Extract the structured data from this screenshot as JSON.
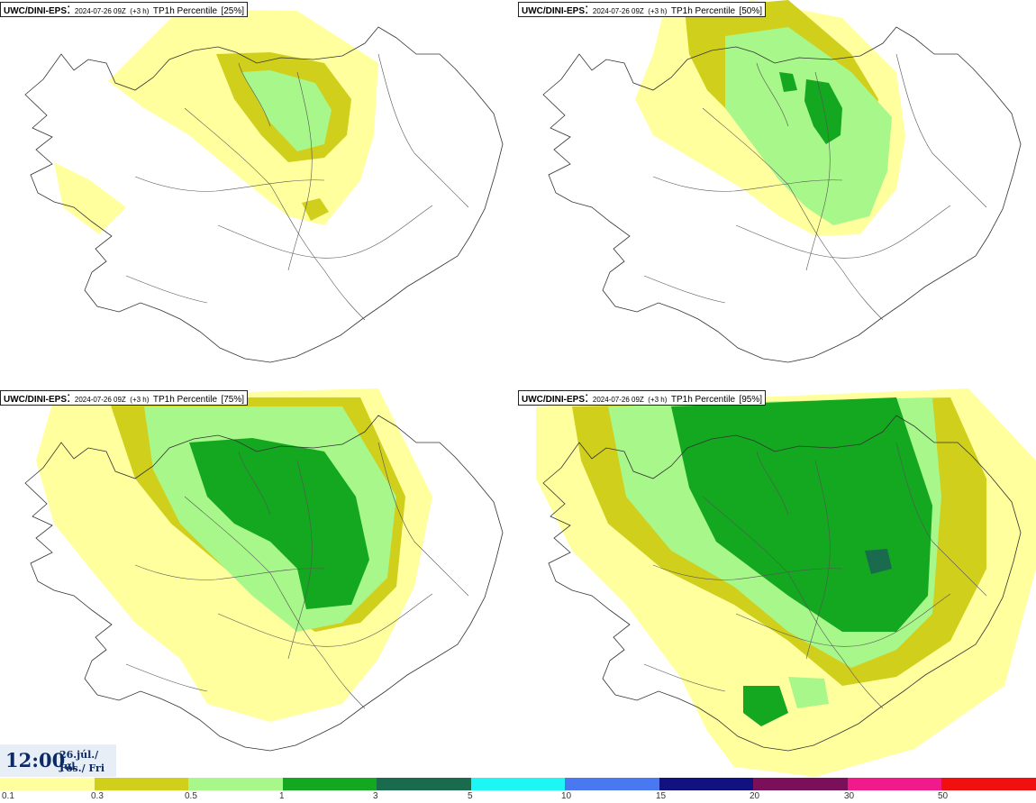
{
  "panels": [
    {
      "model": "UWC/DINI-EPS",
      "run": "2024-07-26 09Z",
      "forecast": "(+3 h)",
      "param": "TP1h Percentile",
      "percentile": "[25%]"
    },
    {
      "model": "UWC/DINI-EPS",
      "run": "2024-07-26 09Z",
      "forecast": "(+3 h)",
      "param": "TP1h Percentile",
      "percentile": "[50%]"
    },
    {
      "model": "UWC/DINI-EPS",
      "run": "2024-07-26 09Z",
      "forecast": "(+3 h)",
      "param": "TP1h Percentile",
      "percentile": "[75%]"
    },
    {
      "model": "UWC/DINI-EPS",
      "run": "2024-07-26 09Z",
      "forecast": "(+3 h)",
      "param": "TP1h Percentile",
      "percentile": "[95%]"
    }
  ],
  "valid_time": {
    "time": "12:00",
    "date_line1": "26.júl./ Jul",
    "date_line2": "Fös./ Fri"
  },
  "legend": {
    "colors": [
      "#ffff9e",
      "#cfcf1c",
      "#a8f78a",
      "#13a81f",
      "#1a6b4e",
      "#1ef6f6",
      "#4a78f0",
      "#111180",
      "#7a105a",
      "#f01a8a",
      "#f01010"
    ],
    "labels": [
      "0.1",
      "0.3",
      "0.5",
      "1",
      "3",
      "5",
      "10",
      "15",
      "20",
      "30",
      "50"
    ]
  }
}
